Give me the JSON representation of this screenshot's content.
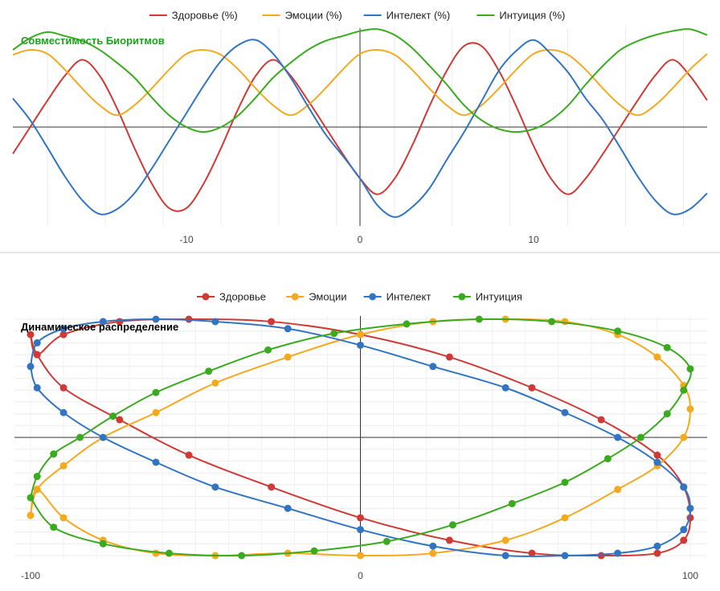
{
  "chart_data": [
    {
      "type": "line",
      "title": "Совместимость Биоритмов",
      "title_color": "#1da21d",
      "legend_position": "top",
      "xlim": [
        -20,
        20
      ],
      "ylim": [
        -100,
        100
      ],
      "x_ticks": [
        -10,
        0,
        10
      ],
      "grid": true,
      "x": [
        -20,
        -19,
        -18,
        -17,
        -16,
        -15,
        -14,
        -13,
        -12,
        -11,
        -10,
        -9,
        -8,
        -7,
        -6,
        -5,
        -4,
        -3,
        -2,
        -1,
        0,
        1,
        2,
        3,
        4,
        5,
        6,
        7,
        8,
        9,
        10,
        11,
        12,
        13,
        14,
        15,
        16,
        17,
        18,
        19,
        20
      ],
      "series": [
        {
          "name": "Здоровье (%)",
          "color": "#d03a36",
          "values": [
            -27,
            0,
            27,
            52,
            68,
            52,
            19,
            -21,
            -57,
            -82,
            -82,
            -57,
            -21,
            19,
            52,
            68,
            52,
            27,
            0,
            -27,
            -52,
            -68,
            -52,
            -19,
            21,
            57,
            82,
            82,
            57,
            21,
            -19,
            -52,
            -68,
            -52,
            -27,
            0,
            27,
            52,
            68,
            52,
            27
          ]
        },
        {
          "name": "Эмоции (%)",
          "color": "#f4aa1f",
          "values": [
            73,
            78,
            74,
            58,
            39,
            22,
            12,
            22,
            39,
            58,
            74,
            78,
            73,
            58,
            39,
            22,
            12,
            22,
            39,
            58,
            74,
            78,
            73,
            58,
            39,
            22,
            12,
            22,
            39,
            58,
            74,
            78,
            73,
            58,
            39,
            22,
            12,
            22,
            39,
            58,
            74
          ]
        },
        {
          "name": "Интелект (%)",
          "color": "#3175c2",
          "values": [
            29,
            7,
            -21,
            -50,
            -74,
            -88,
            -83,
            -67,
            -42,
            -14,
            14,
            42,
            67,
            83,
            88,
            74,
            50,
            21,
            -7,
            -29,
            -52,
            -79,
            -91,
            -81,
            -62,
            -33,
            -5,
            26,
            57,
            77,
            88,
            74,
            55,
            29,
            7,
            -21,
            -50,
            -74,
            -88,
            -83,
            -67
          ]
        },
        {
          "name": "Интуиция (%)",
          "color": "#3aaa1f",
          "values": [
            78,
            90,
            96,
            92,
            87,
            78,
            65,
            50,
            30,
            12,
            0,
            -5,
            0,
            12,
            30,
            50,
            65,
            78,
            87,
            92,
            97,
            99,
            93,
            80,
            62,
            43,
            22,
            7,
            -2,
            -5,
            -2,
            7,
            22,
            43,
            62,
            78,
            87,
            93,
            97,
            99,
            93
          ]
        }
      ]
    },
    {
      "type": "line",
      "title": "Динамическое распределение",
      "title_color": "#000000",
      "legend_position": "top",
      "xlim": [
        -100,
        100
      ],
      "ylim": [
        -100,
        100
      ],
      "x_ticks": [
        -100,
        0,
        100
      ],
      "grid": true,
      "series": [
        {
          "name": "Здоровье",
          "color": "#d03a36",
          "x": [
            -100,
            -98,
            -90,
            -73,
            -52,
            -27,
            0,
            27,
            52,
            73,
            90,
            98,
            100,
            98,
            90,
            73,
            52,
            27,
            0,
            -27,
            -52,
            -73,
            -90,
            -98,
            -100
          ],
          "y": [
            87,
            70,
            42,
            15,
            -15,
            -42,
            -68,
            -87,
            -98,
            -100,
            -98,
            -87,
            -68,
            -42,
            -15,
            15,
            42,
            68,
            87,
            98,
            100,
            98,
            87,
            70,
            87
          ]
        },
        {
          "name": "Эмоции",
          "color": "#f4aa1f",
          "x": [
            -100,
            -98,
            -90,
            -78,
            -62,
            -44,
            -22,
            0,
            22,
            44,
            62,
            78,
            90,
            98,
            100,
            98,
            90,
            78,
            62,
            44,
            22,
            0,
            -22,
            -44,
            -62,
            -78,
            -90,
            -98,
            -100
          ],
          "y": [
            -66,
            -44,
            -24,
            0,
            21,
            46,
            68,
            87,
            98,
            100,
            98,
            87,
            68,
            44,
            24,
            0,
            -24,
            -44,
            -68,
            -87,
            -98,
            -100,
            -98,
            -100,
            -98,
            -87,
            -68,
            -44,
            -66
          ]
        },
        {
          "name": "Интелект",
          "color": "#3175c2",
          "x": [
            -100,
            -98,
            -90,
            -78,
            -62,
            -44,
            -22,
            0,
            22,
            44,
            62,
            78,
            90,
            98,
            100,
            98,
            90,
            78,
            62,
            44,
            22,
            0,
            -22,
            -44,
            -62,
            -78,
            -90,
            -98,
            -100
          ],
          "y": [
            60,
            42,
            21,
            0,
            -21,
            -42,
            -60,
            -78,
            -92,
            -100,
            -100,
            -98,
            -92,
            -78,
            -60,
            -42,
            -21,
            0,
            21,
            42,
            60,
            78,
            92,
            98,
            100,
            98,
            92,
            80,
            60
          ]
        },
        {
          "name": "Интуиция",
          "color": "#3aaa1f",
          "x": [
            -100,
            -98,
            -93,
            -85,
            -75,
            -62,
            -46,
            -28,
            -8,
            14,
            36,
            58,
            78,
            93,
            100,
            98,
            93,
            85,
            75,
            62,
            46,
            28,
            8,
            -14,
            -36,
            -58,
            -78,
            -93,
            -100
          ],
          "y": [
            -51,
            -33,
            -14,
            0,
            18,
            38,
            56,
            74,
            88,
            96,
            100,
            98,
            90,
            76,
            58,
            40,
            20,
            0,
            -18,
            -38,
            -56,
            -74,
            -88,
            -96,
            -100,
            -98,
            -90,
            -76,
            -51
          ]
        }
      ]
    }
  ]
}
